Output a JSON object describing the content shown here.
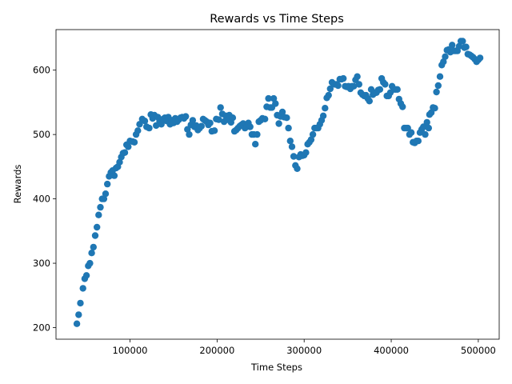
{
  "chart_data": {
    "type": "scatter",
    "title": "Rewards vs Time Steps",
    "xlabel": "Time Steps",
    "ylabel": "Rewards",
    "xlim": [
      15000,
      524000
    ],
    "ylim": [
      182,
      663
    ],
    "xticks": [
      100000,
      200000,
      300000,
      400000,
      500000
    ],
    "xtick_labels": [
      "100000",
      "200000",
      "300000",
      "400000",
      "500000"
    ],
    "yticks": [
      200,
      300,
      400,
      500,
      600
    ],
    "ytick_labels": [
      "200",
      "300",
      "400",
      "500",
      "600"
    ],
    "grid": false,
    "marker_color": "#1f77b4",
    "series": [
      {
        "points": [
          [
            39000,
            206
          ],
          [
            41000,
            220
          ],
          [
            43000,
            238
          ],
          [
            46000,
            261
          ],
          [
            48000,
            276
          ],
          [
            50000,
            281
          ],
          [
            52000,
            296
          ],
          [
            54000,
            300
          ],
          [
            56000,
            316
          ],
          [
            58000,
            325
          ],
          [
            60000,
            343
          ],
          [
            62000,
            356
          ],
          [
            64000,
            375
          ],
          [
            66000,
            387
          ],
          [
            68000,
            400
          ],
          [
            70000,
            400
          ],
          [
            72000,
            408
          ],
          [
            74000,
            423
          ],
          [
            76000,
            435
          ],
          [
            78000,
            441
          ],
          [
            80000,
            444
          ],
          [
            82000,
            436
          ],
          [
            84000,
            448
          ],
          [
            86000,
            450
          ],
          [
            88000,
            457
          ],
          [
            90000,
            465
          ],
          [
            92000,
            471
          ],
          [
            94000,
            472
          ],
          [
            96000,
            484
          ],
          [
            98000,
            481
          ],
          [
            100000,
            490
          ],
          [
            103000,
            489
          ],
          [
            105000,
            488
          ],
          [
            107000,
            500
          ],
          [
            109000,
            506
          ],
          [
            111000,
            516
          ],
          [
            114000,
            524
          ],
          [
            117000,
            521
          ],
          [
            119000,
            512
          ],
          [
            122000,
            510
          ],
          [
            124000,
            531
          ],
          [
            126000,
            525
          ],
          [
            128000,
            530
          ],
          [
            130000,
            514
          ],
          [
            132000,
            527
          ],
          [
            134000,
            521
          ],
          [
            136000,
            516
          ],
          [
            138000,
            524
          ],
          [
            140000,
            526
          ],
          [
            142000,
            521
          ],
          [
            144000,
            527
          ],
          [
            146000,
            516
          ],
          [
            148000,
            522
          ],
          [
            150000,
            518
          ],
          [
            152000,
            525
          ],
          [
            154000,
            520
          ],
          [
            156000,
            523
          ],
          [
            158000,
            526
          ],
          [
            160000,
            527
          ],
          [
            162000,
            525
          ],
          [
            164000,
            528
          ],
          [
            166000,
            508
          ],
          [
            168000,
            500
          ],
          [
            170000,
            515
          ],
          [
            172000,
            522
          ],
          [
            174000,
            512
          ],
          [
            176000,
            514
          ],
          [
            178000,
            507
          ],
          [
            180000,
            510
          ],
          [
            182000,
            513
          ],
          [
            184000,
            524
          ],
          [
            186000,
            522
          ],
          [
            188000,
            520
          ],
          [
            190000,
            515
          ],
          [
            192000,
            518
          ],
          [
            194000,
            505
          ],
          [
            197000,
            506
          ],
          [
            199000,
            524
          ],
          [
            202000,
            523
          ],
          [
            204000,
            542
          ],
          [
            206000,
            532
          ],
          [
            208000,
            520
          ],
          [
            210000,
            529
          ],
          [
            212000,
            523
          ],
          [
            214000,
            530
          ],
          [
            216000,
            519
          ],
          [
            218000,
            526
          ],
          [
            220000,
            505
          ],
          [
            222000,
            507
          ],
          [
            224000,
            510
          ],
          [
            226000,
            513
          ],
          [
            228000,
            515
          ],
          [
            230000,
            517
          ],
          [
            232000,
            510
          ],
          [
            234000,
            512
          ],
          [
            236000,
            518
          ],
          [
            238000,
            512
          ],
          [
            240000,
            500
          ],
          [
            242000,
            500
          ],
          [
            244000,
            485
          ],
          [
            246000,
            500
          ],
          [
            248000,
            520
          ],
          [
            250000,
            522
          ],
          [
            252000,
            525
          ],
          [
            255000,
            524
          ],
          [
            257000,
            543
          ],
          [
            259000,
            556
          ],
          [
            261000,
            542
          ],
          [
            263000,
            542
          ],
          [
            265000,
            556
          ],
          [
            267000,
            548
          ],
          [
            269000,
            530
          ],
          [
            271000,
            517
          ],
          [
            273000,
            528
          ],
          [
            275000,
            535
          ],
          [
            277000,
            527
          ],
          [
            280000,
            526
          ],
          [
            282000,
            510
          ],
          [
            284000,
            490
          ],
          [
            286000,
            481
          ],
          [
            288000,
            466
          ],
          [
            290000,
            452
          ],
          [
            292000,
            447
          ],
          [
            294000,
            465
          ],
          [
            296000,
            469
          ],
          [
            298000,
            467
          ],
          [
            300000,
            468
          ],
          [
            302000,
            472
          ],
          [
            304000,
            485
          ],
          [
            306000,
            488
          ],
          [
            308000,
            492
          ],
          [
            310000,
            500
          ],
          [
            312000,
            510
          ],
          [
            314000,
            510
          ],
          [
            316000,
            510
          ],
          [
            318000,
            516
          ],
          [
            320000,
            522
          ],
          [
            322000,
            529
          ],
          [
            324000,
            541
          ],
          [
            326000,
            557
          ],
          [
            328000,
            561
          ],
          [
            330000,
            571
          ],
          [
            332000,
            581
          ],
          [
            335000,
            578
          ],
          [
            337000,
            578
          ],
          [
            339000,
            576
          ],
          [
            341000,
            586
          ],
          [
            343000,
            586
          ],
          [
            345000,
            587
          ],
          [
            347000,
            575
          ],
          [
            349000,
            574
          ],
          [
            351000,
            575
          ],
          [
            353000,
            571
          ],
          [
            355000,
            575
          ],
          [
            357000,
            575
          ],
          [
            359000,
            585
          ],
          [
            361000,
            590
          ],
          [
            363000,
            578
          ],
          [
            365000,
            565
          ],
          [
            367000,
            562
          ],
          [
            369000,
            560
          ],
          [
            371000,
            561
          ],
          [
            373000,
            556
          ],
          [
            375000,
            552
          ],
          [
            377000,
            570
          ],
          [
            379000,
            562
          ],
          [
            381000,
            565
          ],
          [
            383000,
            565
          ],
          [
            385000,
            569
          ],
          [
            387000,
            570
          ],
          [
            389000,
            587
          ],
          [
            391000,
            581
          ],
          [
            393000,
            578
          ],
          [
            395000,
            560
          ],
          [
            397000,
            560
          ],
          [
            399000,
            565
          ],
          [
            401000,
            575
          ],
          [
            403000,
            570
          ],
          [
            405000,
            570
          ],
          [
            407000,
            570
          ],
          [
            409000,
            555
          ],
          [
            411000,
            548
          ],
          [
            413000,
            543
          ],
          [
            415000,
            510
          ],
          [
            417000,
            510
          ],
          [
            419000,
            510
          ],
          [
            421000,
            500
          ],
          [
            423000,
            503
          ],
          [
            425000,
            488
          ],
          [
            427000,
            487
          ],
          [
            429000,
            490
          ],
          [
            431000,
            490
          ],
          [
            433000,
            503
          ],
          [
            435000,
            508
          ],
          [
            437000,
            512
          ],
          [
            439000,
            500
          ],
          [
            441000,
            519
          ],
          [
            443000,
            510
          ],
          [
            444000,
            531
          ],
          [
            446000,
            534
          ],
          [
            448000,
            542
          ],
          [
            450000,
            541
          ],
          [
            452000,
            566
          ],
          [
            454000,
            576
          ],
          [
            456000,
            590
          ],
          [
            458000,
            608
          ],
          [
            460000,
            613
          ],
          [
            462000,
            621
          ],
          [
            464000,
            631
          ],
          [
            466000,
            632
          ],
          [
            468000,
            628
          ],
          [
            470000,
            639
          ],
          [
            472000,
            630
          ],
          [
            474000,
            630
          ],
          [
            476000,
            630
          ],
          [
            478000,
            637
          ],
          [
            480000,
            645
          ],
          [
            482000,
            645
          ],
          [
            484000,
            635
          ],
          [
            486000,
            636
          ],
          [
            488000,
            625
          ],
          [
            490000,
            624
          ],
          [
            492000,
            622
          ],
          [
            494000,
            620
          ],
          [
            496000,
            617
          ],
          [
            498000,
            613
          ],
          [
            500000,
            616
          ],
          [
            502000,
            619
          ]
        ]
      }
    ]
  }
}
